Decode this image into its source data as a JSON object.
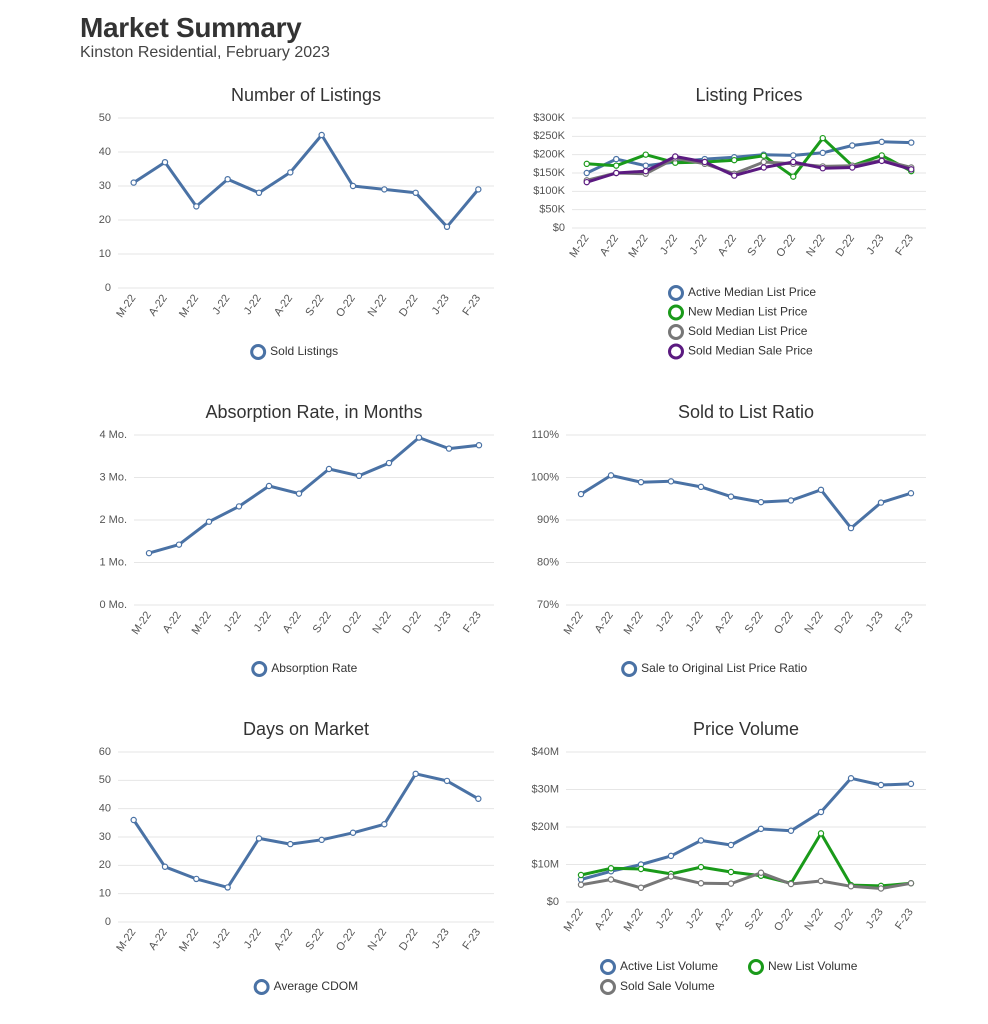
{
  "header": {
    "title": "Market Summary",
    "subtitle": "Kinston Residential, February 2023"
  },
  "colors": {
    "blue": "#4a72a5",
    "green": "#1a9a1a",
    "gray": "#777777",
    "purple": "#5b1a80",
    "grid": "#e6e6e6",
    "axis": "#555555"
  },
  "months": [
    "M-22",
    "A-22",
    "M-22",
    "J-22",
    "J-22",
    "A-22",
    "S-22",
    "O-22",
    "N-22",
    "D-22",
    "J-23",
    "F-23"
  ],
  "chart_data": [
    {
      "id": "listings",
      "type": "line",
      "title": "Number of Listings",
      "categories": [
        "M-22",
        "A-22",
        "M-22",
        "J-22",
        "J-22",
        "A-22",
        "S-22",
        "O-22",
        "N-22",
        "D-22",
        "J-23",
        "F-23"
      ],
      "ylim": [
        0,
        50
      ],
      "yticks": [
        0,
        10,
        20,
        30,
        40,
        50
      ],
      "ytick_labels": [
        "0",
        "10",
        "20",
        "30",
        "40",
        "50"
      ],
      "grid": true,
      "legend_position": "bottom",
      "series": [
        {
          "name": "Sold Listings",
          "color": "#4a72a5",
          "values": [
            31,
            37,
            24,
            32,
            28,
            34,
            45,
            30,
            29,
            28,
            18,
            29
          ]
        }
      ]
    },
    {
      "id": "prices",
      "type": "line",
      "title": "Listing Prices",
      "categories": [
        "M-22",
        "A-22",
        "M-22",
        "J-22",
        "J-22",
        "A-22",
        "S-22",
        "O-22",
        "N-22",
        "D-22",
        "J-23",
        "F-23"
      ],
      "ylim": [
        0,
        300000
      ],
      "yticks": [
        0,
        50000,
        100000,
        150000,
        200000,
        250000,
        300000
      ],
      "ytick_labels": [
        "$0",
        "$50K",
        "$100K",
        "$150K",
        "$200K",
        "$250K",
        "$300K"
      ],
      "grid": true,
      "legend_position": "bottom",
      "series": [
        {
          "name": "Active Median List Price",
          "color": "#4a72a5",
          "values": [
            150000,
            188000,
            170000,
            180000,
            188000,
            193000,
            200000,
            198000,
            205000,
            225000,
            235000,
            233000
          ]
        },
        {
          "name": "New Median List Price",
          "color": "#1a9a1a",
          "values": [
            175000,
            170000,
            200000,
            178000,
            180000,
            185000,
            197000,
            140000,
            245000,
            170000,
            198000,
            155000
          ]
        },
        {
          "name": "Sold Median List Price",
          "color": "#777777",
          "values": [
            130000,
            150000,
            148000,
            190000,
            175000,
            148000,
            180000,
            175000,
            168000,
            170000,
            185000,
            165000
          ]
        },
        {
          "name": "Sold Median Sale Price",
          "color": "#5b1a80",
          "values": [
            125000,
            150000,
            155000,
            195000,
            180000,
            143000,
            165000,
            180000,
            163000,
            165000,
            183000,
            160000
          ]
        }
      ]
    },
    {
      "id": "absorption",
      "type": "line",
      "title": "Absorption Rate, in Months",
      "categories": [
        "M-22",
        "A-22",
        "M-22",
        "J-22",
        "J-22",
        "A-22",
        "S-22",
        "O-22",
        "N-22",
        "D-22",
        "J-23",
        "F-23"
      ],
      "ylim": [
        0,
        4
      ],
      "yticks": [
        0,
        1,
        2,
        3,
        4
      ],
      "ytick_labels": [
        "0 Mo.",
        "1 Mo.",
        "2 Mo.",
        "3 Mo.",
        "4 Mo."
      ],
      "grid": true,
      "legend_position": "bottom",
      "series": [
        {
          "name": "Absorption Rate",
          "color": "#4a72a5",
          "values": [
            1.22,
            1.42,
            1.96,
            2.32,
            2.8,
            2.62,
            3.2,
            3.04,
            3.34,
            3.94,
            3.68,
            3.76
          ]
        }
      ]
    },
    {
      "id": "ratio",
      "type": "line",
      "title": "Sold to List Ratio",
      "categories": [
        "M-22",
        "A-22",
        "M-22",
        "J-22",
        "J-22",
        "A-22",
        "S-22",
        "O-22",
        "N-22",
        "D-22",
        "J-23",
        "F-23"
      ],
      "ylim": [
        70,
        110
      ],
      "yticks": [
        70,
        80,
        90,
        100,
        110
      ],
      "ytick_labels": [
        "70%",
        "80%",
        "90%",
        "100%",
        "110%"
      ],
      "grid": true,
      "legend_position": "bottom",
      "series": [
        {
          "name": "Sale to Original List Price Ratio",
          "color": "#4a72a5",
          "values": [
            96.1,
            100.5,
            98.9,
            99.1,
            97.8,
            95.5,
            94.2,
            94.6,
            97.1,
            88.1,
            94.1,
            96.3
          ]
        }
      ]
    },
    {
      "id": "dom",
      "type": "line",
      "title": "Days on Market",
      "categories": [
        "M-22",
        "A-22",
        "M-22",
        "J-22",
        "J-22",
        "A-22",
        "S-22",
        "O-22",
        "N-22",
        "D-22",
        "J-23",
        "F-23"
      ],
      "ylim": [
        0,
        60
      ],
      "yticks": [
        0,
        10,
        20,
        30,
        40,
        50,
        60
      ],
      "ytick_labels": [
        "0",
        "10",
        "20",
        "30",
        "40",
        "50",
        "60"
      ],
      "grid": true,
      "legend_position": "bottom",
      "series": [
        {
          "name": "Average CDOM",
          "color": "#4a72a5",
          "values": [
            36,
            19.5,
            15.2,
            12.2,
            29.5,
            27.5,
            29,
            31.5,
            34.5,
            52.3,
            49.8,
            43.5
          ]
        }
      ]
    },
    {
      "id": "volume",
      "type": "line",
      "title": "Price Volume",
      "categories": [
        "M-22",
        "A-22",
        "M-22",
        "J-22",
        "J-22",
        "A-22",
        "S-22",
        "O-22",
        "N-22",
        "D-22",
        "J-23",
        "F-23"
      ],
      "ylim": [
        0,
        40000000
      ],
      "yticks": [
        0,
        10000000,
        20000000,
        30000000,
        40000000
      ],
      "ytick_labels": [
        "$0",
        "$10M",
        "$20M",
        "$30M",
        "$40M"
      ],
      "grid": true,
      "legend_position": "bottom",
      "series": [
        {
          "name": "Active List Volume",
          "color": "#4a72a5",
          "values": [
            6000000,
            8200000,
            10000000,
            12300000,
            16400000,
            15200000,
            19500000,
            19000000,
            24000000,
            33000000,
            31200000,
            31500000
          ]
        },
        {
          "name": "New List Volume",
          "color": "#1a9a1a",
          "values": [
            7200000,
            9000000,
            8800000,
            7500000,
            9300000,
            8000000,
            7000000,
            5000000,
            18300000,
            4500000,
            4300000,
            5000000
          ]
        },
        {
          "name": "Sold Sale Volume",
          "color": "#777777",
          "values": [
            4600000,
            6000000,
            3800000,
            6800000,
            5000000,
            4900000,
            7800000,
            4800000,
            5600000,
            4200000,
            3600000,
            5000000
          ]
        }
      ]
    }
  ]
}
